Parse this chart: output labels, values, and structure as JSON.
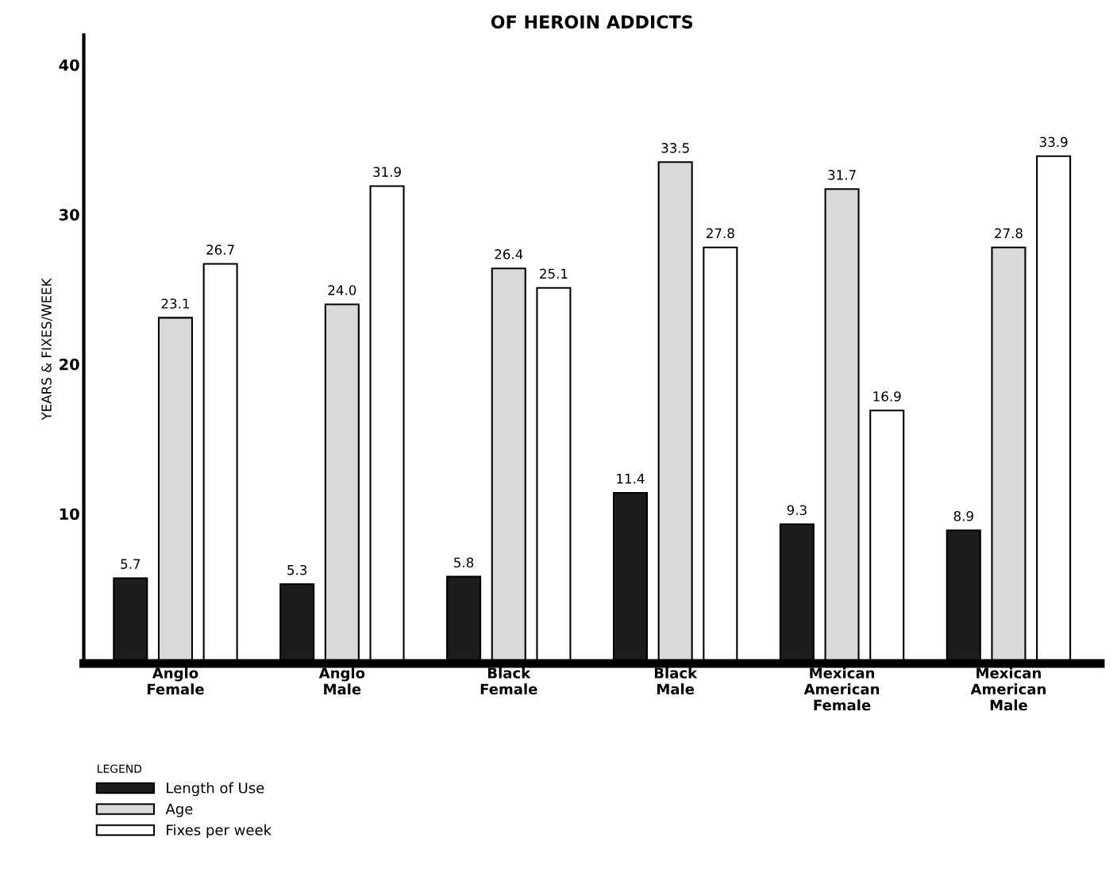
{
  "chart_data": {
    "type": "bar",
    "title": "OF HEROIN ADDICTS",
    "ylabel": "YEARS & FIXES/WEEK",
    "categories": [
      "Anglo\nFemale",
      "Anglo\nMale",
      "Black\nFemale",
      "Black\nMale",
      "Mexican\nAmerican\nFemale",
      "Mexican\nAmerican\nMale"
    ],
    "series": [
      {
        "name": "Length of Use",
        "color": "#1c1c1c",
        "values": [
          5.7,
          5.3,
          5.8,
          11.4,
          9.3,
          8.9
        ]
      },
      {
        "name": "Age",
        "color": "#d9d9d9",
        "values": [
          23.1,
          24.0,
          26.4,
          33.5,
          31.7,
          27.8
        ]
      },
      {
        "name": "Fixes per week",
        "color": "#ffffff",
        "values": [
          26.7,
          31.9,
          25.1,
          27.8,
          16.9,
          33.9
        ]
      }
    ],
    "value_labels": [
      [
        "5.7",
        "5.3",
        "5.8",
        "11.4",
        "9.3",
        "8.9"
      ],
      [
        "23.1",
        "24.0",
        "26.4",
        "33.5",
        "31.7",
        "27.8"
      ],
      [
        "26.7",
        "31.9",
        "25.1",
        "27.8",
        "16.9",
        "33.9"
      ]
    ],
    "ylim": [
      0,
      42
    ],
    "yticks": [
      10,
      20,
      30,
      40
    ],
    "legend_title": "LEGEND",
    "legend": "bottom left",
    "grid": false
  }
}
